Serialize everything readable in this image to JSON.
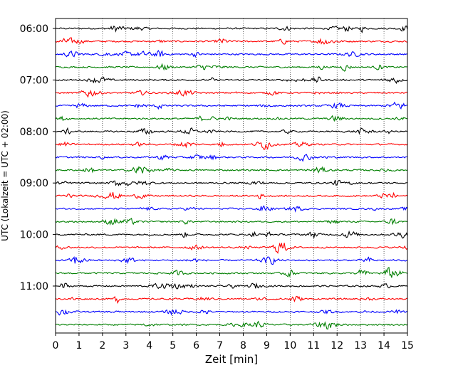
{
  "chart_data": {
    "type": "line",
    "title": "",
    "xlabel": "Zeit  [min]",
    "ylabel": "UTC (Lokalzeit = UTC + 02:00)",
    "xlim": [
      0,
      15
    ],
    "x_ticks": [
      "0",
      "1",
      "2",
      "3",
      "4",
      "5",
      "6",
      "7",
      "8",
      "9",
      "10",
      "11",
      "12",
      "13",
      "14",
      "15"
    ],
    "y_tick_labels": [
      "06:00",
      "07:00",
      "08:00",
      "09:00",
      "10:00",
      "11:00"
    ],
    "trace_start_time": "06:00",
    "trace_interval_minutes": 15,
    "trace_count": 24,
    "trace_colors": [
      "#000000",
      "#ff0000",
      "#0000ff",
      "#007f00"
    ],
    "x_grid": "dotted vertical lines at every minute"
  }
}
